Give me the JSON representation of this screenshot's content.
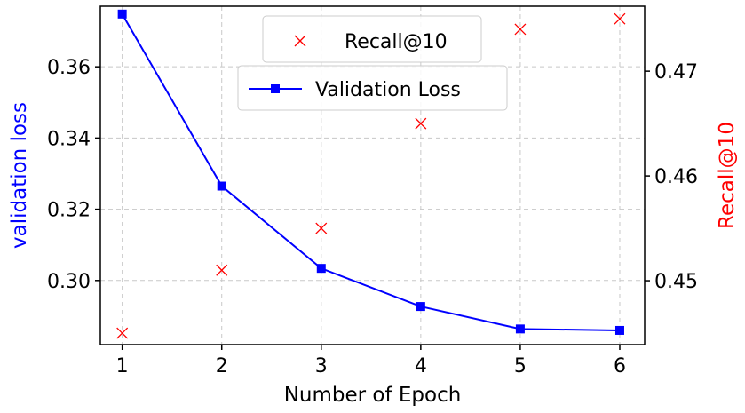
{
  "chart_data": {
    "type": "line",
    "x": [
      1,
      2,
      3,
      4,
      5,
      6
    ],
    "xlabel": "Number of Epoch",
    "xlim": [
      0.78,
      6.25
    ],
    "xticks": [
      "1",
      "2",
      "3",
      "4",
      "5",
      "6"
    ],
    "grid": true,
    "series": [
      {
        "name": "Validation Loss",
        "axis": "left",
        "color": "#0000ff",
        "marker": "square",
        "line": "solid",
        "values": [
          0.3748,
          0.3265,
          0.3034,
          0.2927,
          0.2864,
          0.286
        ]
      },
      {
        "name": "Recall@10",
        "axis": "right",
        "color": "#ff0000",
        "marker": "x",
        "line": "none",
        "values": [
          0.445,
          0.451,
          0.455,
          0.465,
          0.474,
          0.475
        ]
      }
    ],
    "left_axis": {
      "label": "validation loss",
      "color": "#0000ff",
      "lim": [
        0.282,
        0.377
      ],
      "ticks": [
        0.3,
        0.32,
        0.34,
        0.36
      ],
      "tick_labels": [
        "0.30",
        "0.32",
        "0.34",
        "0.36"
      ]
    },
    "right_axis": {
      "label": "Recall@10",
      "color": "#ff0000",
      "lim": [
        0.4439,
        0.4762
      ],
      "ticks": [
        0.45,
        0.46,
        0.47
      ],
      "tick_labels": [
        "0.45",
        "0.46",
        "0.47"
      ]
    },
    "legends": [
      {
        "placement": "top-center",
        "entries": [
          "Recall@10"
        ]
      },
      {
        "placement": "upper-center",
        "entries": [
          "Validation Loss"
        ]
      }
    ]
  }
}
